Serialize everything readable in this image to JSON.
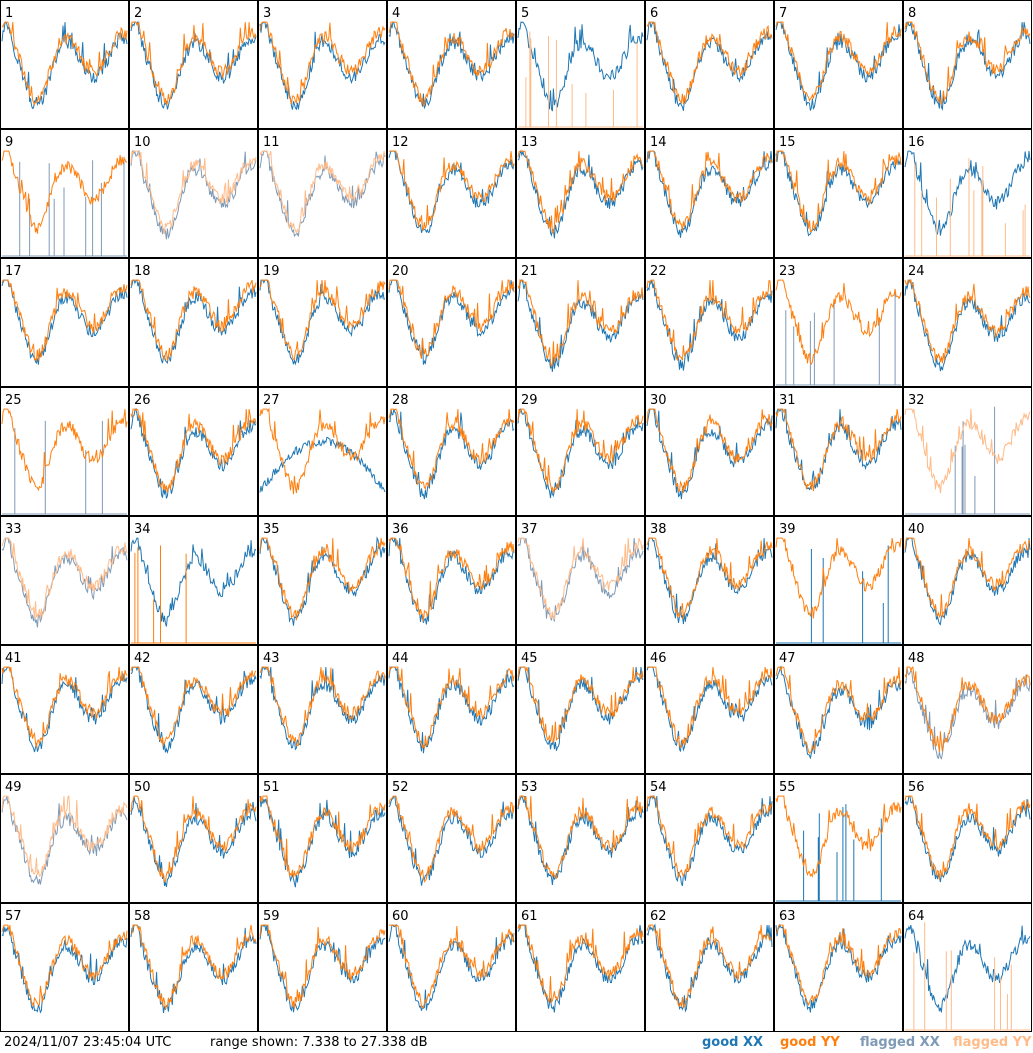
{
  "chart_data": {
    "type": "line",
    "panel_count": 64,
    "panel_labels": [
      "1",
      "2",
      "3",
      "4",
      "5",
      "6",
      "7",
      "8",
      "9",
      "10",
      "11",
      "12",
      "13",
      "14",
      "15",
      "16",
      "17",
      "18",
      "19",
      "20",
      "21",
      "22",
      "23",
      "24",
      "25",
      "26",
      "27",
      "28",
      "29",
      "30",
      "31",
      "32",
      "33",
      "34",
      "35",
      "36",
      "37",
      "38",
      "39",
      "40",
      "41",
      "42",
      "43",
      "44",
      "45",
      "46",
      "47",
      "48",
      "49",
      "50",
      "51",
      "52",
      "53",
      "54",
      "55",
      "56",
      "57",
      "58",
      "59",
      "60",
      "61",
      "62",
      "63",
      "64"
    ],
    "ylim": [
      7.338,
      27.338
    ],
    "series_styles": {
      "good_xx": "#1f77b4",
      "good_yy": "#ff7f0e",
      "flagged_xx": "#7f9ab6",
      "flagged_yy": "#ffbb88"
    },
    "panels_state": {
      "5": {
        "xx": "good",
        "yy": "flagged",
        "yy_mode": "spikes"
      },
      "9": {
        "xx": "flagged",
        "yy": "good",
        "xx_mode": "spikes"
      },
      "10": {
        "xx": "flagged",
        "yy": "flagged"
      },
      "11": {
        "xx": "flagged",
        "yy": "flagged"
      },
      "16": {
        "xx": "good",
        "yy": "flagged",
        "yy_mode": "spikes"
      },
      "23": {
        "xx": "flagged",
        "yy": "good",
        "xx_mode": "spikes"
      },
      "25": {
        "xx": "flagged",
        "yy": "good",
        "xx_mode": "spikes"
      },
      "27": {
        "xx": "good",
        "yy": "good",
        "xx_mode": "dip"
      },
      "32": {
        "xx": "flagged",
        "yy": "flagged",
        "xx_mode": "spikes"
      },
      "33": {
        "xx": "flagged",
        "yy": "flagged"
      },
      "34": {
        "xx": "good",
        "yy": "good",
        "yy_mode": "spikes"
      },
      "37": {
        "xx": "flagged",
        "yy": "flagged"
      },
      "39": {
        "xx": "good",
        "yy": "good",
        "xx_mode": "spikes"
      },
      "48": {
        "xx": "flagged",
        "yy": "good"
      },
      "49": {
        "xx": "flagged",
        "yy": "flagged"
      },
      "55": {
        "xx": "good",
        "yy": "good",
        "xx_mode": "spikes"
      },
      "64": {
        "xx": "good",
        "yy": "flagged",
        "yy_mode": "spikes"
      }
    }
  },
  "footer": {
    "timestamp": "2024/11/07 23:45:04 UTC",
    "range_text": "range shown: 7.338 to 27.338 dB",
    "legend": {
      "good_xx": "good XX",
      "good_yy": "good YY",
      "flagged_xx": "flagged XX",
      "flagged_yy": "flagged YY"
    }
  }
}
